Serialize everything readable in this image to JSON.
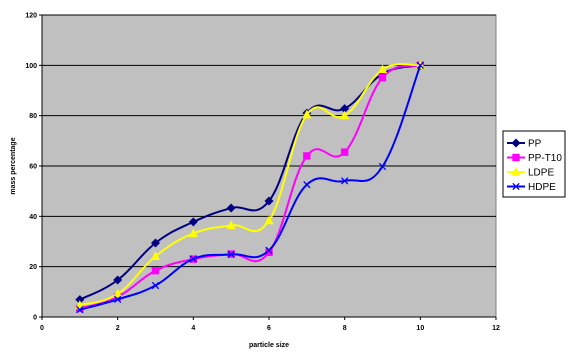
{
  "chart_data": {
    "type": "line",
    "title": "",
    "xlabel": "particle size",
    "ylabel": "mass percentage",
    "xlim": [
      0,
      12
    ],
    "ylim": [
      0,
      120
    ],
    "x_ticks": [
      0,
      2,
      4,
      6,
      8,
      10,
      12
    ],
    "y_ticks": [
      0,
      20,
      40,
      60,
      80,
      100,
      120
    ],
    "grid": "horizontal",
    "plot_background": "#c0c0c0",
    "legend_position": "right",
    "x": [
      1,
      2,
      3,
      4,
      5,
      6,
      7,
      8,
      9,
      10
    ],
    "series": [
      {
        "name": "PP",
        "color": "#000080",
        "marker": "diamond",
        "values": [
          6.9,
          14.7,
          29.4,
          37.8,
          43.3,
          46.1,
          81.0,
          82.8,
          96.6,
          100.0
        ]
      },
      {
        "name": "PP-T10",
        "color": "#ff00ff",
        "marker": "square",
        "values": [
          3.4,
          8.0,
          18.4,
          23.0,
          25.0,
          25.7,
          64.0,
          65.5,
          95.1,
          100.0
        ]
      },
      {
        "name": "LDPE",
        "color": "#ffff00",
        "marker": "triangle",
        "values": [
          4.7,
          9.2,
          24.1,
          33.2,
          36.4,
          38.3,
          80.4,
          80.0,
          98.3,
          100.0
        ]
      },
      {
        "name": "HDPE",
        "color": "#0000ff",
        "marker": "x",
        "values": [
          2.9,
          7.0,
          12.5,
          23.1,
          24.9,
          26.5,
          52.6,
          54.1,
          59.8,
          100.0
        ]
      }
    ]
  }
}
